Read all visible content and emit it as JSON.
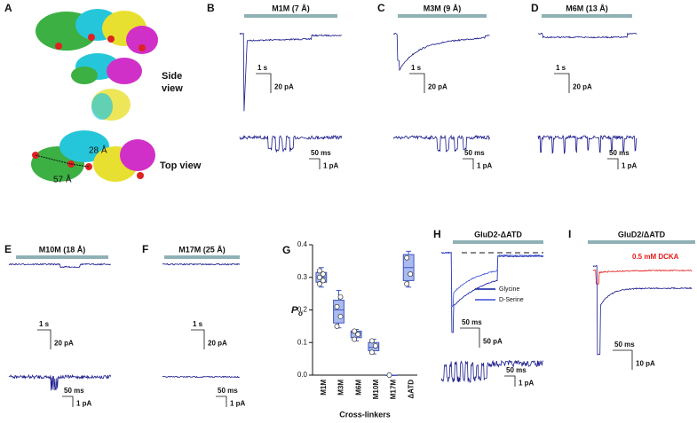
{
  "panels": [
    {
      "letter": "A",
      "side_view": [
        "Side",
        "view"
      ],
      "top_view": "Top view",
      "dist_1": "28 Å",
      "dist_2": "57 Å"
    },
    {
      "letter": "B",
      "title": "M1M (7 Å)",
      "scale_time": "1 s",
      "scale_current": "20 pA",
      "single_time": "50 ms",
      "single_current": "1 pA"
    },
    {
      "letter": "C",
      "title": "M3M (9 Å)",
      "scale_time": "1 s",
      "scale_current": "20 pA",
      "single_time": "50 ms",
      "single_current": "1 pA"
    },
    {
      "letter": "D",
      "title": "M6M (13 Å)",
      "scale_time": "1 s",
      "scale_current": "20 pA",
      "single_time": "50 ms",
      "single_current": "1 pA"
    },
    {
      "letter": "E",
      "title": "M10M (18 Å)",
      "scale_time": "1 s",
      "scale_current": "20 pA",
      "single_time": "50 ms",
      "single_current": "1 pA"
    },
    {
      "letter": "F",
      "title": "M17M (25 Å)",
      "scale_time": "1 s",
      "scale_current": "20 pA",
      "single_time": "50 ms",
      "single_current": "1 pA"
    },
    {
      "letter": "G"
    },
    {
      "letter": "H",
      "title": "GluD2-ΔATD",
      "legend": [
        "Glycine",
        "D-Serine"
      ],
      "scale_time": "50 ms",
      "scale_current": "50 pA",
      "single_time": "50 ms",
      "single_current": "1 pA"
    },
    {
      "letter": "I",
      "title": "GluD2/ΔATD",
      "annotation": "0.5 mM DCKA",
      "scale_time": "50 ms",
      "scale_current": "10 pA"
    }
  ],
  "chart_data": {
    "type": "box",
    "xlabel": "Cross-linkers",
    "ylabel": "P",
    "ylabel_sub": "o",
    "categories": [
      "M1M",
      "M3M",
      "M6M",
      "M10M",
      "M17M",
      "ΔATD"
    ],
    "boxes": [
      {
        "min": 0.27,
        "q1": 0.285,
        "median": 0.3,
        "q3": 0.315,
        "max": 0.33,
        "points": [
          0.28,
          0.29,
          0.3,
          0.31,
          0.32
        ]
      },
      {
        "min": 0.145,
        "q1": 0.16,
        "median": 0.2,
        "q3": 0.23,
        "max": 0.26,
        "points": [
          0.15,
          0.18,
          0.21,
          0.24
        ]
      },
      {
        "min": 0.105,
        "q1": 0.115,
        "median": 0.13,
        "q3": 0.135,
        "max": 0.14,
        "points": [
          0.11,
          0.125,
          0.135
        ]
      },
      {
        "min": 0.065,
        "q1": 0.075,
        "median": 0.085,
        "q3": 0.1,
        "max": 0.11,
        "points": [
          0.07,
          0.09,
          0.105
        ]
      },
      {
        "min": 0,
        "q1": 0,
        "median": 0,
        "q3": 0,
        "max": 0,
        "points": [
          0
        ]
      },
      {
        "min": 0.27,
        "q1": 0.29,
        "median": 0.33,
        "q3": 0.37,
        "max": 0.38,
        "points": [
          0.28,
          0.31,
          0.36
        ]
      }
    ],
    "color": "#a9bbef",
    "edge": "#4257c4",
    "ylim": [
      0,
      0.4
    ],
    "yticks": [
      {
        "value": 0,
        "label": "0.0"
      },
      0.1,
      0.2,
      0.3,
      0.4
    ]
  }
}
